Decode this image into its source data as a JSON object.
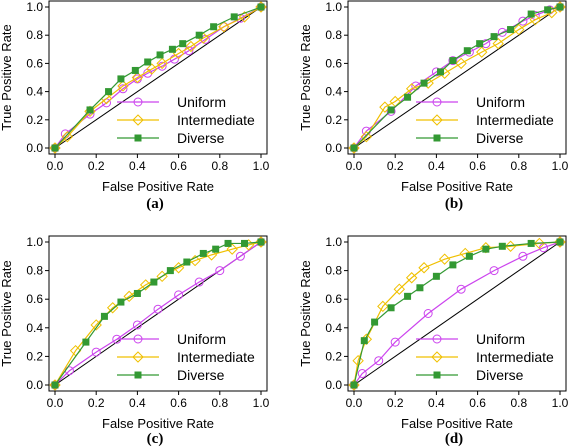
{
  "chart_data": [
    {
      "type": "line",
      "panel_label": "(a)",
      "xlabel": "False Positive Rate",
      "ylabel": "True Positive Rate",
      "xlim": [
        0,
        1
      ],
      "ylim": [
        0,
        1
      ],
      "x_ticks": [
        "0.0",
        "0.2",
        "0.4",
        "0.6",
        "0.8",
        "1.0"
      ],
      "y_ticks": [
        "0.0",
        "0.2",
        "0.4",
        "0.6",
        "0.8",
        "1.0"
      ],
      "diagonal": true,
      "legend_position": "bottom-right",
      "series": [
        {
          "name": "Uniform",
          "color": "#cc44ee",
          "marker": "circle",
          "points": [
            [
              0,
              0
            ],
            [
              0.05,
              0.1
            ],
            [
              0.17,
              0.24
            ],
            [
              0.25,
              0.32
            ],
            [
              0.33,
              0.42
            ],
            [
              0.4,
              0.49
            ],
            [
              0.45,
              0.53
            ],
            [
              0.52,
              0.58
            ],
            [
              0.58,
              0.63
            ],
            [
              0.65,
              0.69
            ],
            [
              0.73,
              0.77
            ],
            [
              0.82,
              0.86
            ],
            [
              0.9,
              0.92
            ],
            [
              1,
              1
            ]
          ]
        },
        {
          "name": "Intermediate",
          "color": "#f0c000",
          "marker": "diamond",
          "points": [
            [
              0,
              0
            ],
            [
              0.06,
              0.08
            ],
            [
              0.17,
              0.26
            ],
            [
              0.25,
              0.35
            ],
            [
              0.33,
              0.44
            ],
            [
              0.4,
              0.5
            ],
            [
              0.47,
              0.56
            ],
            [
              0.52,
              0.6
            ],
            [
              0.6,
              0.67
            ],
            [
              0.66,
              0.72
            ],
            [
              0.72,
              0.78
            ],
            [
              0.82,
              0.86
            ],
            [
              0.92,
              0.93
            ],
            [
              1,
              1
            ]
          ]
        },
        {
          "name": "Diverse",
          "color": "#339933",
          "marker": "square",
          "points": [
            [
              0,
              0
            ],
            [
              0.17,
              0.27
            ],
            [
              0.26,
              0.4
            ],
            [
              0.32,
              0.49
            ],
            [
              0.39,
              0.55
            ],
            [
              0.45,
              0.61
            ],
            [
              0.51,
              0.66
            ],
            [
              0.57,
              0.7
            ],
            [
              0.62,
              0.74
            ],
            [
              0.7,
              0.8
            ],
            [
              0.77,
              0.86
            ],
            [
              0.87,
              0.93
            ],
            [
              1,
              1
            ]
          ]
        }
      ]
    },
    {
      "type": "line",
      "panel_label": "(b)",
      "xlabel": "False Positive Rate",
      "ylabel": "True Positive Rate",
      "xlim": [
        0,
        1
      ],
      "ylim": [
        0,
        1
      ],
      "x_ticks": [
        "0.0",
        "0.2",
        "0.4",
        "0.6",
        "0.8",
        "1.0"
      ],
      "y_ticks": [
        "0.0",
        "0.2",
        "0.4",
        "0.6",
        "0.8",
        "1.0"
      ],
      "diagonal": true,
      "legend_position": "bottom-right",
      "series": [
        {
          "name": "Uniform",
          "color": "#cc44ee",
          "marker": "circle",
          "points": [
            [
              0,
              0
            ],
            [
              0.06,
              0.12
            ],
            [
              0.18,
              0.26
            ],
            [
              0.3,
              0.44
            ],
            [
              0.4,
              0.54
            ],
            [
              0.48,
              0.62
            ],
            [
              0.56,
              0.68
            ],
            [
              0.64,
              0.74
            ],
            [
              0.72,
              0.82
            ],
            [
              0.82,
              0.9
            ],
            [
              0.88,
              0.94
            ],
            [
              0.95,
              0.98
            ],
            [
              1,
              1
            ]
          ]
        },
        {
          "name": "Intermediate",
          "color": "#f0c000",
          "marker": "diamond",
          "points": [
            [
              0,
              0
            ],
            [
              0.06,
              0.08
            ],
            [
              0.15,
              0.29
            ],
            [
              0.2,
              0.33
            ],
            [
              0.28,
              0.42
            ],
            [
              0.36,
              0.46
            ],
            [
              0.44,
              0.53
            ],
            [
              0.52,
              0.6
            ],
            [
              0.62,
              0.68
            ],
            [
              0.7,
              0.74
            ],
            [
              0.8,
              0.84
            ],
            [
              0.88,
              0.91
            ],
            [
              0.96,
              0.96
            ],
            [
              1,
              1
            ]
          ]
        },
        {
          "name": "Diverse",
          "color": "#339933",
          "marker": "square",
          "points": [
            [
              0,
              0
            ],
            [
              0.18,
              0.27
            ],
            [
              0.26,
              0.36
            ],
            [
              0.34,
              0.46
            ],
            [
              0.42,
              0.54
            ],
            [
              0.48,
              0.62
            ],
            [
              0.55,
              0.69
            ],
            [
              0.61,
              0.74
            ],
            [
              0.68,
              0.79
            ],
            [
              0.76,
              0.84
            ],
            [
              0.86,
              0.95
            ],
            [
              0.94,
              0.98
            ],
            [
              1,
              1
            ]
          ]
        }
      ]
    },
    {
      "type": "line",
      "panel_label": "(c)",
      "xlabel": "False Positive Rate",
      "ylabel": "True Positive Rate",
      "xlim": [
        0,
        1
      ],
      "ylim": [
        0,
        1
      ],
      "x_ticks": [
        "0.0",
        "0.2",
        "0.4",
        "0.6",
        "0.8",
        "1.0"
      ],
      "y_ticks": [
        "0.0",
        "0.2",
        "0.4",
        "0.6",
        "0.8",
        "1.0"
      ],
      "diagonal": true,
      "legend_position": "bottom-right",
      "series": [
        {
          "name": "Uniform",
          "color": "#cc44ee",
          "marker": "circle",
          "points": [
            [
              0,
              0
            ],
            [
              0.07,
              0.1
            ],
            [
              0.2,
              0.23
            ],
            [
              0.3,
              0.32
            ],
            [
              0.4,
              0.42
            ],
            [
              0.5,
              0.53
            ],
            [
              0.6,
              0.63
            ],
            [
              0.7,
              0.72
            ],
            [
              0.8,
              0.8
            ],
            [
              0.9,
              0.9
            ],
            [
              1,
              1
            ]
          ]
        },
        {
          "name": "Intermediate",
          "color": "#f0c000",
          "marker": "diamond",
          "points": [
            [
              0,
              0
            ],
            [
              0.1,
              0.24
            ],
            [
              0.2,
              0.42
            ],
            [
              0.28,
              0.54
            ],
            [
              0.36,
              0.62
            ],
            [
              0.44,
              0.7
            ],
            [
              0.52,
              0.76
            ],
            [
              0.6,
              0.82
            ],
            [
              0.68,
              0.87
            ],
            [
              0.76,
              0.91
            ],
            [
              0.86,
              0.95
            ],
            [
              0.94,
              0.98
            ],
            [
              1,
              1
            ]
          ]
        },
        {
          "name": "Diverse",
          "color": "#339933",
          "marker": "square",
          "points": [
            [
              0,
              0
            ],
            [
              0.15,
              0.3
            ],
            [
              0.24,
              0.48
            ],
            [
              0.32,
              0.58
            ],
            [
              0.4,
              0.64
            ],
            [
              0.48,
              0.72
            ],
            [
              0.56,
              0.8
            ],
            [
              0.64,
              0.86
            ],
            [
              0.72,
              0.92
            ],
            [
              0.78,
              0.95
            ],
            [
              0.84,
              0.99
            ],
            [
              0.92,
              0.99
            ],
            [
              1,
              1
            ]
          ]
        }
      ]
    },
    {
      "type": "line",
      "panel_label": "(d)",
      "xlabel": "False Positive Rate",
      "ylabel": "True Positive Rate",
      "xlim": [
        0,
        1
      ],
      "ylim": [
        0,
        1
      ],
      "x_ticks": [
        "0.0",
        "0.2",
        "0.4",
        "0.6",
        "0.8",
        "1.0"
      ],
      "y_ticks": [
        "0.0",
        "0.2",
        "0.4",
        "0.6",
        "0.8",
        "1.0"
      ],
      "diagonal": true,
      "legend_position": "bottom-right",
      "series": [
        {
          "name": "Uniform",
          "color": "#cc44ee",
          "marker": "circle",
          "points": [
            [
              0,
              0
            ],
            [
              0.04,
              0.08
            ],
            [
              0.12,
              0.17
            ],
            [
              0.2,
              0.3
            ],
            [
              0.36,
              0.5
            ],
            [
              0.52,
              0.67
            ],
            [
              0.68,
              0.8
            ],
            [
              0.82,
              0.9
            ],
            [
              0.92,
              0.96
            ],
            [
              1,
              1
            ]
          ]
        },
        {
          "name": "Intermediate",
          "color": "#f0c000",
          "marker": "diamond",
          "points": [
            [
              0,
              0
            ],
            [
              0.02,
              0.17
            ],
            [
              0.06,
              0.32
            ],
            [
              0.14,
              0.55
            ],
            [
              0.22,
              0.67
            ],
            [
              0.28,
              0.75
            ],
            [
              0.34,
              0.82
            ],
            [
              0.44,
              0.88
            ],
            [
              0.54,
              0.92
            ],
            [
              0.64,
              0.96
            ],
            [
              0.76,
              0.97
            ],
            [
              0.9,
              0.99
            ],
            [
              1,
              1
            ]
          ]
        },
        {
          "name": "Diverse",
          "color": "#339933",
          "marker": "square",
          "points": [
            [
              0,
              0
            ],
            [
              0.05,
              0.31
            ],
            [
              0.1,
              0.44
            ],
            [
              0.18,
              0.54
            ],
            [
              0.26,
              0.62
            ],
            [
              0.32,
              0.68
            ],
            [
              0.4,
              0.76
            ],
            [
              0.48,
              0.84
            ],
            [
              0.56,
              0.9
            ],
            [
              0.64,
              0.95
            ],
            [
              0.72,
              0.97
            ],
            [
              0.86,
              0.99
            ],
            [
              1,
              1
            ]
          ]
        }
      ]
    }
  ]
}
